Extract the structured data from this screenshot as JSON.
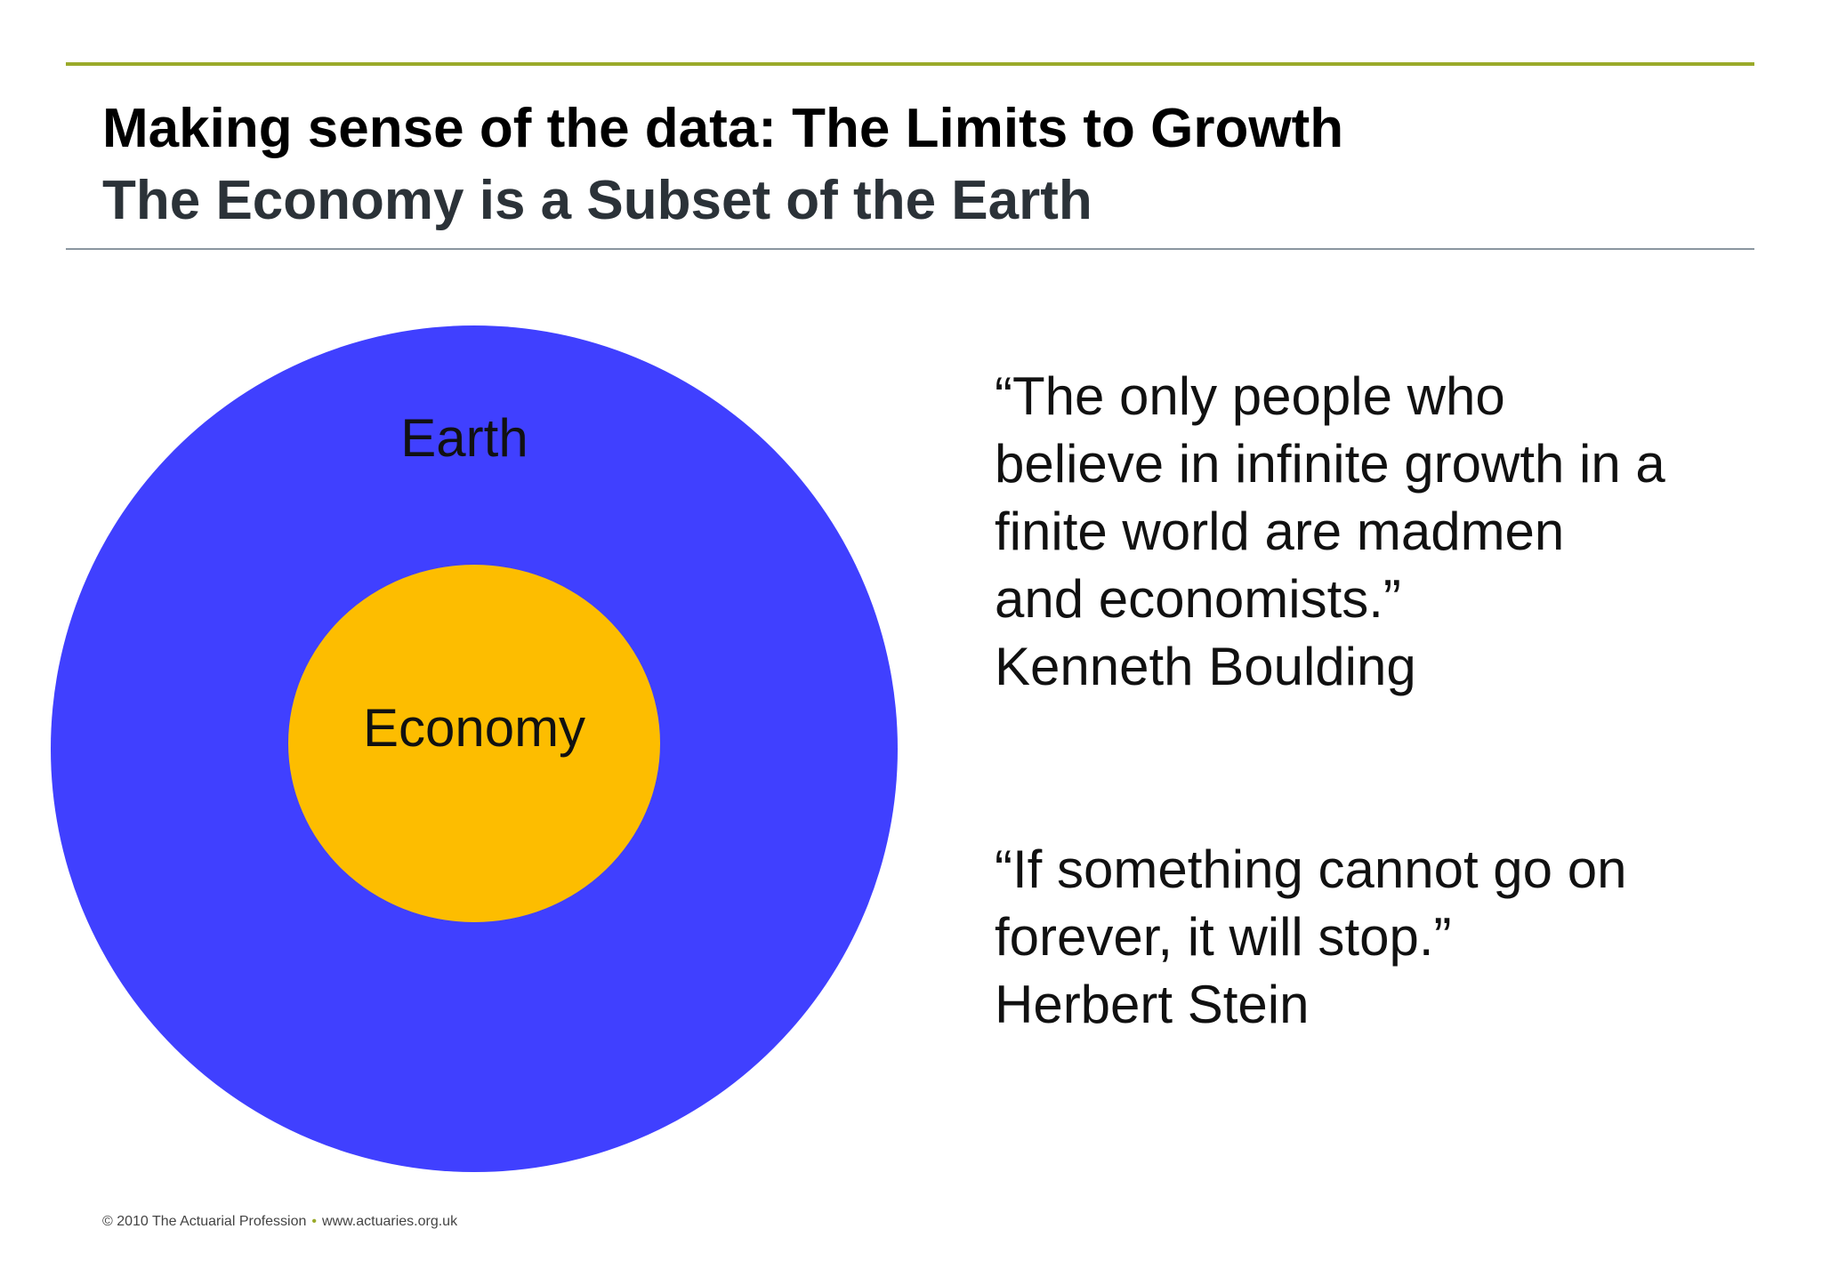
{
  "header": {
    "title": "Making sense of the data: The Limits to Growth",
    "subtitle": "The Economy is a Subset of the Earth"
  },
  "diagram": {
    "outer": {
      "label": "Earth"
    },
    "inner": {
      "label": "Economy"
    }
  },
  "quotes": [
    {
      "lines": [
        "“The only people who",
        "believe in infinite growth in a",
        "finite world are madmen",
        "and economists.”"
      ],
      "author": "Kenneth Boulding"
    },
    {
      "lines": [
        "“If something cannot go on",
        "forever, it will stop.”"
      ],
      "author": "Herbert Stein"
    }
  ],
  "footer": {
    "copyright": "© 2010 The Actuarial Profession",
    "separator": "•",
    "website": "www.actuaries.org.uk"
  }
}
